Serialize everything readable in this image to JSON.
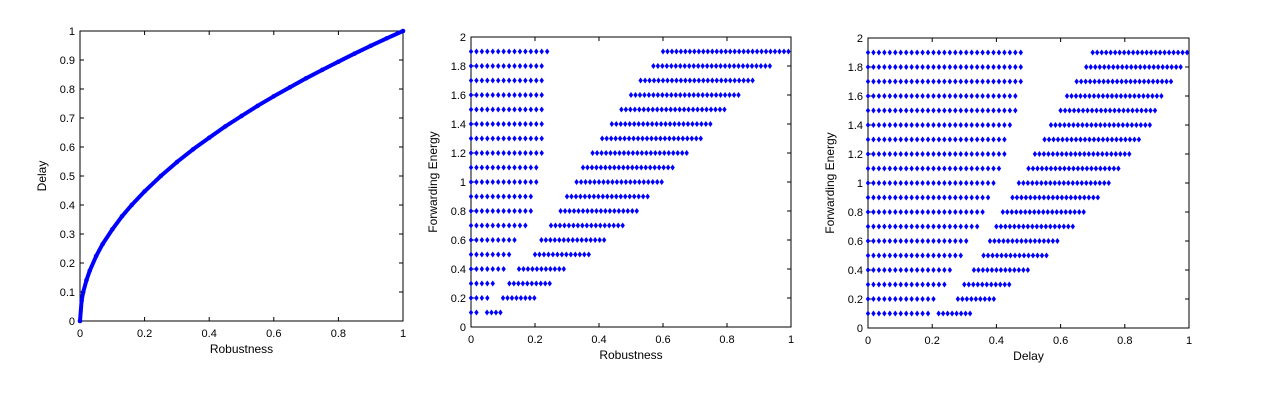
{
  "chart_data": [
    {
      "type": "line",
      "xlabel": "Robustness",
      "ylabel": "Delay",
      "xlim": [
        0,
        1
      ],
      "ylim": [
        0,
        1
      ],
      "xticks": [
        0,
        0.2,
        0.4,
        0.6,
        0.8,
        1
      ],
      "yticks": [
        0,
        0.1,
        0.2,
        0.3,
        0.4,
        0.5,
        0.6,
        0.7,
        0.8,
        0.9,
        1
      ],
      "x": [
        0,
        0.005,
        0.01,
        0.02,
        0.03,
        0.05,
        0.07,
        0.1,
        0.13,
        0.16,
        0.2,
        0.25,
        0.3,
        0.35,
        0.4,
        0.45,
        0.5,
        0.55,
        0.6,
        0.65,
        0.7,
        0.75,
        0.8,
        0.85,
        0.9,
        0.95,
        1
      ],
      "y": [
        0,
        0.07,
        0.1,
        0.141,
        0.173,
        0.224,
        0.265,
        0.316,
        0.361,
        0.4,
        0.447,
        0.5,
        0.548,
        0.592,
        0.632,
        0.671,
        0.707,
        0.742,
        0.775,
        0.806,
        0.837,
        0.866,
        0.894,
        0.922,
        0.949,
        0.975,
        1
      ],
      "marker": "point",
      "color": "#0000ff",
      "grid": false
    },
    {
      "type": "scatter",
      "xlabel": "Robustness",
      "ylabel": "Forwarding Energy",
      "xlim": [
        0,
        1
      ],
      "ylim": [
        0,
        2
      ],
      "xticks": [
        0,
        0.2,
        0.4,
        0.6,
        0.8,
        1
      ],
      "yticks": [
        0,
        0.2,
        0.4,
        0.6,
        0.8,
        1,
        1.2,
        1.4,
        1.6,
        1.8,
        2
      ],
      "y_levels": [
        0.1,
        0.2,
        0.3,
        0.4,
        0.5,
        0.6,
        0.7,
        0.8,
        0.9,
        1.0,
        1.1,
        1.2,
        1.3,
        1.4,
        1.5,
        1.6,
        1.7,
        1.8,
        1.9
      ],
      "left_band_max_x": [
        0.03,
        0.06,
        0.08,
        0.11,
        0.13,
        0.15,
        0.17,
        0.19,
        0.2,
        0.21,
        0.22,
        0.23,
        0.23,
        0.23,
        0.23,
        0.23,
        0.23,
        0.23,
        0.24
      ],
      "right_band_x_range": [
        [
          0.05,
          0.1
        ],
        [
          0.1,
          0.2
        ],
        [
          0.12,
          0.25
        ],
        [
          0.15,
          0.3
        ],
        [
          0.2,
          0.38
        ],
        [
          0.22,
          0.42
        ],
        [
          0.25,
          0.48
        ],
        [
          0.28,
          0.52
        ],
        [
          0.3,
          0.56
        ],
        [
          0.33,
          0.6
        ],
        [
          0.35,
          0.64
        ],
        [
          0.38,
          0.68
        ],
        [
          0.41,
          0.72
        ],
        [
          0.44,
          0.76
        ],
        [
          0.47,
          0.8
        ],
        [
          0.5,
          0.84
        ],
        [
          0.53,
          0.88
        ],
        [
          0.57,
          0.94
        ],
        [
          0.6,
          1.0
        ]
      ],
      "marker": "diamond",
      "color": "#0000ff",
      "grid": false
    },
    {
      "type": "scatter",
      "xlabel": "Delay",
      "ylabel": "Forwarding Energy",
      "xlim": [
        0,
        1
      ],
      "ylim": [
        0,
        2
      ],
      "xticks": [
        0,
        0.2,
        0.4,
        0.6,
        0.8,
        1
      ],
      "yticks": [
        0,
        0.2,
        0.4,
        0.6,
        0.8,
        1,
        1.2,
        1.4,
        1.6,
        1.8,
        2
      ],
      "y_levels": [
        0.1,
        0.2,
        0.3,
        0.4,
        0.5,
        0.6,
        0.7,
        0.8,
        0.9,
        1.0,
        1.1,
        1.2,
        1.3,
        1.4,
        1.5,
        1.6,
        1.7,
        1.8,
        1.9
      ],
      "left_band_max_x": [
        0.2,
        0.22,
        0.25,
        0.27,
        0.3,
        0.32,
        0.35,
        0.36,
        0.38,
        0.4,
        0.42,
        0.43,
        0.44,
        0.45,
        0.46,
        0.47,
        0.48,
        0.49,
        0.49
      ],
      "right_band_x_range": [
        [
          0.22,
          0.32
        ],
        [
          0.28,
          0.4
        ],
        [
          0.3,
          0.45
        ],
        [
          0.33,
          0.5
        ],
        [
          0.36,
          0.56
        ],
        [
          0.38,
          0.6
        ],
        [
          0.4,
          0.65
        ],
        [
          0.42,
          0.68
        ],
        [
          0.45,
          0.72
        ],
        [
          0.47,
          0.75
        ],
        [
          0.5,
          0.78
        ],
        [
          0.52,
          0.82
        ],
        [
          0.55,
          0.85
        ],
        [
          0.57,
          0.88
        ],
        [
          0.6,
          0.9
        ],
        [
          0.62,
          0.92
        ],
        [
          0.65,
          0.95
        ],
        [
          0.68,
          0.98
        ],
        [
          0.7,
          1.0
        ]
      ],
      "marker": "diamond",
      "color": "#0000ff",
      "grid": false
    }
  ]
}
